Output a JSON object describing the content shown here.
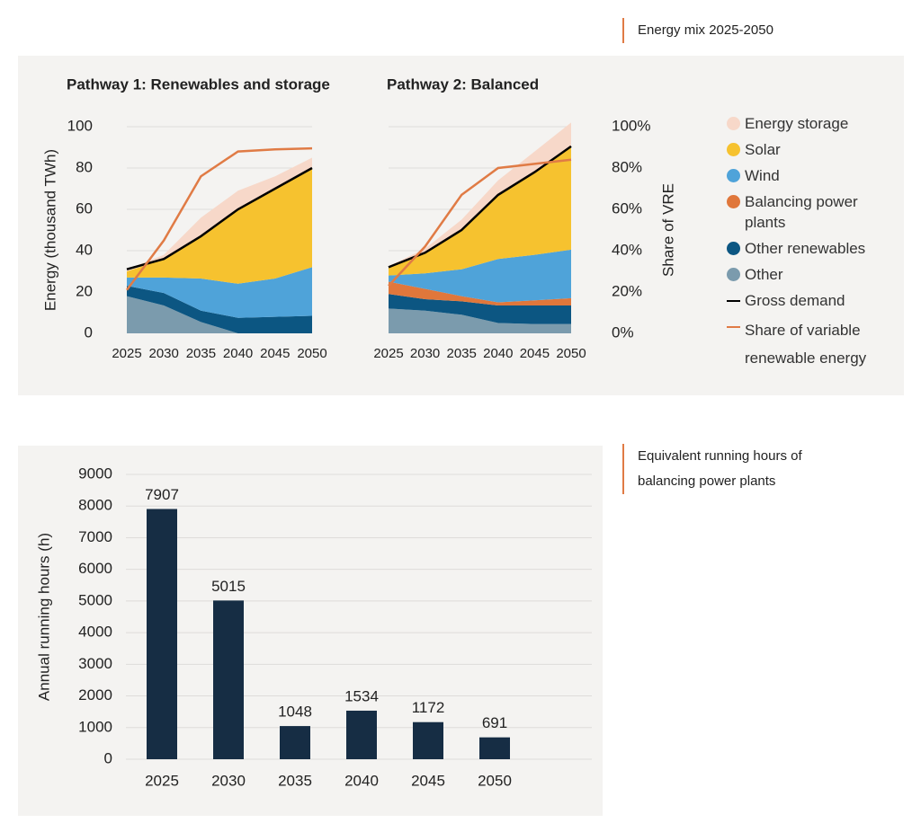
{
  "headings": [
    "Energy mix 2025-2050",
    "Equivalent running hours of balancing power plants"
  ],
  "chart_data": [
    {
      "type": "stacked-area",
      "ylabel": "Energy (thousand TWh)",
      "y2label": "Share of VRE",
      "x": [
        2025,
        2030,
        2035,
        2040,
        2045,
        2050
      ],
      "xlim": [
        2025,
        2050
      ],
      "xticks": [
        2025,
        2030,
        2035,
        2040,
        2045,
        2050
      ],
      "ylim": [
        0,
        100
      ],
      "yticks": [
        0,
        20,
        40,
        60,
        80,
        100
      ],
      "y2lim": [
        0,
        100
      ],
      "y2ticks": [
        {
          "value": 0,
          "label": "0%"
        },
        {
          "value": 20,
          "label": "20%"
        },
        {
          "value": 40,
          "label": "40%"
        },
        {
          "value": 60,
          "label": "60%"
        },
        {
          "value": 80,
          "label": "80%"
        },
        {
          "value": 100,
          "label": "100%"
        }
      ],
      "grid": true,
      "series": [
        {
          "name": "Energy storage",
          "color": "#f7d8c9",
          "kind": "area"
        },
        {
          "name": "Solar",
          "color": "#f6c22f",
          "kind": "area"
        },
        {
          "name": "Wind",
          "color": "#4fa3d9",
          "kind": "area"
        },
        {
          "name": "Balancing power plants",
          "color": "#e0773b",
          "kind": "area"
        },
        {
          "name": "Other renewables",
          "color": "#0c5682",
          "kind": "area"
        },
        {
          "name": "Other",
          "color": "#7b9bad",
          "kind": "area"
        },
        {
          "name": "Gross demand",
          "color": "#000000",
          "kind": "line"
        },
        {
          "name": "Share of variable renewable energy",
          "color": "#e07b45",
          "kind": "line",
          "axis": "y2"
        }
      ],
      "panels": [
        {
          "title": "Pathway 1: Renewables and storage",
          "series": [
            {
              "values": [
                1,
                2,
                9,
                9,
                6,
                5
              ]
            },
            {
              "values": [
                3,
                9,
                20.5,
                36,
                43.5,
                48
              ]
            },
            {
              "values": [
                4,
                7.5,
                15.5,
                16.5,
                18.5,
                23.5
              ]
            },
            {
              "values": [
                0,
                0,
                0,
                0,
                0,
                0
              ]
            },
            {
              "values": [
                5,
                6,
                5.5,
                7.5,
                8,
                8.5
              ]
            },
            {
              "values": [
                18,
                13.5,
                5.5,
                0,
                0,
                0
              ]
            },
            {
              "values": [
                31,
                36,
                47,
                60,
                70,
                80
              ]
            },
            {
              "values": [
                21,
                45,
                76,
                88,
                89,
                89.5
              ]
            }
          ]
        },
        {
          "title": "Pathway 2: Balanced",
          "series": [
            {
              "values": [
                0.5,
                2,
                5,
                7,
                10,
                12
              ]
            },
            {
              "values": [
                4,
                10,
                19,
                31,
                40,
                49.5
              ]
            },
            {
              "values": [
                3,
                7.5,
                13,
                21,
                22,
                23.5
              ]
            },
            {
              "values": [
                6,
                5,
                2.5,
                1.5,
                2.5,
                3.5
              ]
            },
            {
              "values": [
                7,
                5.5,
                6.5,
                8.5,
                9,
                9
              ]
            },
            {
              "values": [
                12,
                11,
                9,
                5,
                4.5,
                4.5
              ]
            },
            {
              "values": [
                32,
                39,
                50,
                67,
                78,
                90.5
              ]
            },
            {
              "values": [
                23,
                42,
                67,
                80,
                82,
                84
              ]
            }
          ]
        }
      ]
    },
    {
      "type": "bar",
      "ylabel": "Annual running hours (h)",
      "categories": [
        "2025",
        "2030",
        "2035",
        "2040",
        "2045",
        "2050"
      ],
      "values": [
        7907,
        5015,
        1048,
        1534,
        1172,
        691
      ],
      "color": "#162d44",
      "ylim": [
        0,
        9000
      ],
      "yticks": [
        0,
        1000,
        2000,
        3000,
        4000,
        5000,
        6000,
        7000,
        8000,
        9000
      ],
      "grid": true
    }
  ]
}
